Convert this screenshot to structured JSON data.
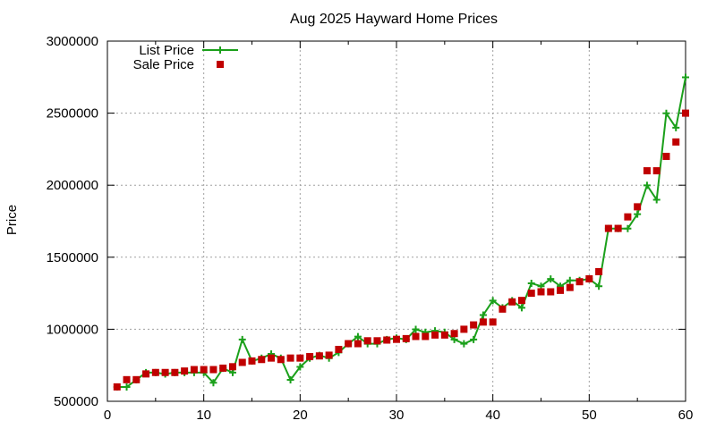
{
  "chart_data": {
    "type": "line",
    "title": "Aug 2025 Hayward Home Prices",
    "xlabel": "",
    "ylabel": "Price",
    "xlim": [
      0,
      60
    ],
    "ylim": [
      500000,
      3000000
    ],
    "x_ticks": [
      "0",
      "10",
      "20",
      "30",
      "40",
      "50",
      "60"
    ],
    "y_ticks": [
      "500000",
      "1000000",
      "1500000",
      "2000000",
      "2500000",
      "3000000"
    ],
    "grid": true,
    "legend_position": "top-left",
    "series": [
      {
        "name": "List Price",
        "style": "line-with-plus-markers",
        "color": "#1ba01b",
        "x": [
          1,
          2,
          3,
          4,
          5,
          6,
          7,
          8,
          9,
          10,
          11,
          12,
          13,
          14,
          15,
          16,
          17,
          18,
          19,
          20,
          21,
          22,
          23,
          24,
          25,
          26,
          27,
          28,
          29,
          30,
          31,
          32,
          33,
          34,
          35,
          36,
          37,
          38,
          39,
          40,
          41,
          42,
          43,
          44,
          45,
          46,
          47,
          48,
          49,
          50,
          51,
          52,
          53,
          54,
          55,
          56,
          57,
          58,
          59,
          60
        ],
        "values": [
          599000,
          599000,
          649000,
          699000,
          699000,
          689000,
          699000,
          699000,
          699000,
          699000,
          629000,
          729000,
          699000,
          929000,
          779000,
          799000,
          829000,
          799000,
          649000,
          739000,
          799000,
          819000,
          799000,
          839000,
          899000,
          949000,
          899000,
          899000,
          929000,
          939000,
          929000,
          999000,
          979000,
          989000,
          979000,
          929000,
          899000,
          929000,
          1099000,
          1199000,
          1149000,
          1199000,
          1149000,
          1319000,
          1299000,
          1349000,
          1299000,
          1339000,
          1339000,
          1349000,
          1299000,
          1699000,
          1699000,
          1699000,
          1799000,
          1999000,
          1899000,
          2499000,
          2399000,
          2749000
        ]
      },
      {
        "name": "Sale Price",
        "style": "square-markers",
        "color": "#c00000",
        "x": [
          1,
          2,
          3,
          4,
          5,
          6,
          7,
          8,
          9,
          10,
          11,
          12,
          13,
          14,
          15,
          16,
          17,
          18,
          19,
          20,
          21,
          22,
          23,
          24,
          25,
          26,
          27,
          28,
          29,
          30,
          31,
          32,
          33,
          34,
          35,
          36,
          37,
          38,
          39,
          40,
          41,
          42,
          43,
          44,
          45,
          46,
          47,
          48,
          49,
          50,
          51,
          52,
          53,
          54,
          55,
          56,
          57,
          58,
          59,
          60
        ],
        "values": [
          600000,
          650000,
          650000,
          690000,
          700000,
          700000,
          700000,
          710000,
          720000,
          720000,
          720000,
          730000,
          740000,
          770000,
          780000,
          790000,
          800000,
          790000,
          800000,
          800000,
          810000,
          815000,
          820000,
          860000,
          900000,
          900000,
          920000,
          920000,
          925000,
          930000,
          935000,
          950000,
          950000,
          960000,
          960000,
          970000,
          1000000,
          1030000,
          1050000,
          1050000,
          1140000,
          1190000,
          1200000,
          1250000,
          1260000,
          1260000,
          1270000,
          1290000,
          1330000,
          1350000,
          1400000,
          1700000,
          1700000,
          1780000,
          1850000,
          2100000,
          2100000,
          2200000,
          2300000,
          2500000
        ]
      }
    ]
  }
}
